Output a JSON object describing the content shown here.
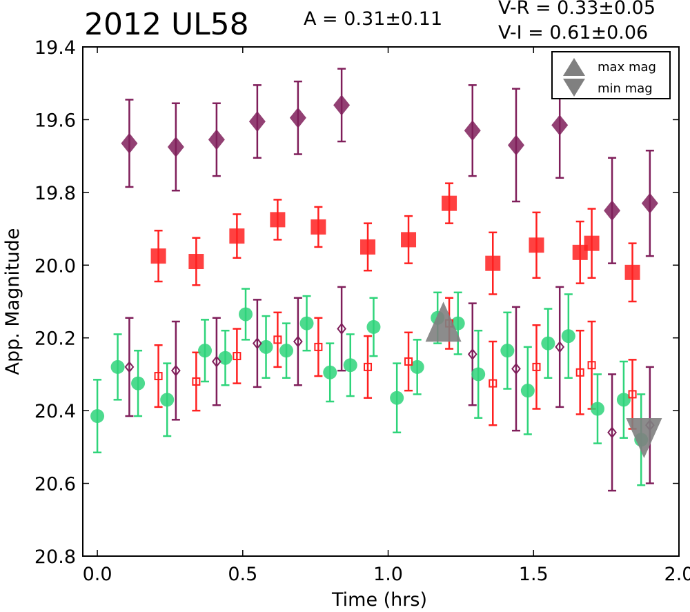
{
  "header": {
    "title": "2012 UL58",
    "amplitude": "A  = 0.31±0.11",
    "vr_color": "V-R = 0.33±0.05",
    "vi_color": "V-I  = 0.61±0.06"
  },
  "chart_data": {
    "type": "scatter",
    "xlabel": "Time (hrs)",
    "ylabel": "App. Magnitude",
    "xlim": [
      -0.05,
      2.0
    ],
    "ylim": [
      19.4,
      20.8
    ],
    "y_inverted": true,
    "x_ticks": [
      "0.0",
      "0.5",
      "1.0",
      "1.5",
      "2.0"
    ],
    "y_ticks": [
      "19.4",
      "19.6",
      "19.8",
      "20.0",
      "20.2",
      "20.4",
      "20.6",
      "20.8"
    ],
    "legend": {
      "position": "top-right",
      "entries": [
        {
          "label": "max mag",
          "marker": "triangle-up",
          "color": "#808080"
        },
        {
          "label": "min mag",
          "marker": "triangle-down",
          "color": "#808080"
        }
      ]
    },
    "series": [
      {
        "key": "i_filled",
        "marker": "diamond",
        "filled": true,
        "color": "#7f1e5a",
        "points": [
          {
            "x": 0.11,
            "y": 19.665,
            "err": 0.12
          },
          {
            "x": 0.27,
            "y": 19.675,
            "err": 0.12
          },
          {
            "x": 0.41,
            "y": 19.655,
            "err": 0.1
          },
          {
            "x": 0.55,
            "y": 19.605,
            "err": 0.1
          },
          {
            "x": 0.69,
            "y": 19.595,
            "err": 0.1
          },
          {
            "x": 0.84,
            "y": 19.56,
            "err": 0.1
          },
          {
            "x": 1.29,
            "y": 19.63,
            "err": 0.125
          },
          {
            "x": 1.44,
            "y": 19.67,
            "err": 0.155
          },
          {
            "x": 1.59,
            "y": 19.615,
            "err": 0.145
          },
          {
            "x": 1.77,
            "y": 19.85,
            "err": 0.145
          },
          {
            "x": 1.9,
            "y": 19.83,
            "err": 0.145
          }
        ]
      },
      {
        "key": "r_filled",
        "marker": "square",
        "filled": true,
        "color": "#ff2020",
        "points": [
          {
            "x": 0.21,
            "y": 19.975,
            "err": 0.07
          },
          {
            "x": 0.34,
            "y": 19.99,
            "err": 0.065
          },
          {
            "x": 0.48,
            "y": 19.92,
            "err": 0.06
          },
          {
            "x": 0.62,
            "y": 19.875,
            "err": 0.055
          },
          {
            "x": 0.76,
            "y": 19.895,
            "err": 0.055
          },
          {
            "x": 0.93,
            "y": 19.95,
            "err": 0.065
          },
          {
            "x": 1.07,
            "y": 19.93,
            "err": 0.065
          },
          {
            "x": 1.21,
            "y": 19.83,
            "err": 0.055
          },
          {
            "x": 1.36,
            "y": 19.995,
            "err": 0.085
          },
          {
            "x": 1.51,
            "y": 19.945,
            "err": 0.09
          },
          {
            "x": 1.66,
            "y": 19.965,
            "err": 0.085
          },
          {
            "x": 1.7,
            "y": 19.94,
            "err": 0.095
          },
          {
            "x": 1.84,
            "y": 20.02,
            "err": 0.08
          }
        ]
      },
      {
        "key": "v_filled",
        "marker": "circle",
        "filled": true,
        "color": "#2ed47a",
        "points": [
          {
            "x": 0.0,
            "y": 20.415,
            "err": 0.1
          },
          {
            "x": 0.07,
            "y": 20.28,
            "err": 0.09
          },
          {
            "x": 0.14,
            "y": 20.325,
            "err": 0.09
          },
          {
            "x": 0.24,
            "y": 20.37,
            "err": 0.1
          },
          {
            "x": 0.37,
            "y": 20.235,
            "err": 0.085
          },
          {
            "x": 0.44,
            "y": 20.255,
            "err": 0.075
          },
          {
            "x": 0.51,
            "y": 20.135,
            "err": 0.07
          },
          {
            "x": 0.58,
            "y": 20.225,
            "err": 0.085
          },
          {
            "x": 0.65,
            "y": 20.235,
            "err": 0.075
          },
          {
            "x": 0.72,
            "y": 20.16,
            "err": 0.075
          },
          {
            "x": 0.8,
            "y": 20.295,
            "err": 0.08
          },
          {
            "x": 0.87,
            "y": 20.275,
            "err": 0.085
          },
          {
            "x": 0.95,
            "y": 20.17,
            "err": 0.08
          },
          {
            "x": 1.03,
            "y": 20.365,
            "err": 0.095
          },
          {
            "x": 1.1,
            "y": 20.28,
            "err": 0.075
          },
          {
            "x": 1.17,
            "y": 20.145,
            "err": 0.07
          },
          {
            "x": 1.24,
            "y": 20.16,
            "err": 0.085
          },
          {
            "x": 1.31,
            "y": 20.3,
            "err": 0.12
          },
          {
            "x": 1.41,
            "y": 20.235,
            "err": 0.105
          },
          {
            "x": 1.48,
            "y": 20.345,
            "err": 0.12
          },
          {
            "x": 1.55,
            "y": 20.215,
            "err": 0.095
          },
          {
            "x": 1.62,
            "y": 20.195,
            "err": 0.115
          },
          {
            "x": 1.72,
            "y": 20.395,
            "err": 0.095
          },
          {
            "x": 1.81,
            "y": 20.37,
            "err": 0.105
          },
          {
            "x": 1.87,
            "y": 20.48,
            "err": 0.125
          }
        ]
      },
      {
        "key": "r_open",
        "marker": "square",
        "filled": false,
        "color": "#ff2020",
        "points": [
          {
            "x": 0.21,
            "y": 20.305,
            "err": 0.085
          },
          {
            "x": 0.34,
            "y": 20.32,
            "err": 0.08
          },
          {
            "x": 0.48,
            "y": 20.25,
            "err": 0.075
          },
          {
            "x": 0.62,
            "y": 20.205,
            "err": 0.075
          },
          {
            "x": 0.76,
            "y": 20.225,
            "err": 0.08
          },
          {
            "x": 0.93,
            "y": 20.28,
            "err": 0.085
          },
          {
            "x": 1.07,
            "y": 20.265,
            "err": 0.08
          },
          {
            "x": 1.21,
            "y": 20.16,
            "err": 0.07
          },
          {
            "x": 1.36,
            "y": 20.325,
            "err": 0.115
          },
          {
            "x": 1.51,
            "y": 20.28,
            "err": 0.115
          },
          {
            "x": 1.66,
            "y": 20.295,
            "err": 0.115
          },
          {
            "x": 1.7,
            "y": 20.275,
            "err": 0.12
          },
          {
            "x": 1.84,
            "y": 20.355,
            "err": 0.095
          }
        ]
      },
      {
        "key": "i_open",
        "marker": "diamond",
        "filled": false,
        "color": "#7f1e5a",
        "points": [
          {
            "x": 0.11,
            "y": 20.28,
            "err": 0.135
          },
          {
            "x": 0.27,
            "y": 20.29,
            "err": 0.135
          },
          {
            "x": 0.41,
            "y": 20.265,
            "err": 0.12
          },
          {
            "x": 0.55,
            "y": 20.215,
            "err": 0.12
          },
          {
            "x": 0.69,
            "y": 20.21,
            "err": 0.12
          },
          {
            "x": 0.84,
            "y": 20.175,
            "err": 0.115
          },
          {
            "x": 1.29,
            "y": 20.245,
            "err": 0.14
          },
          {
            "x": 1.44,
            "y": 20.285,
            "err": 0.17
          },
          {
            "x": 1.59,
            "y": 20.225,
            "err": 0.165
          },
          {
            "x": 1.77,
            "y": 20.46,
            "err": 0.16
          },
          {
            "x": 1.9,
            "y": 20.44,
            "err": 0.16
          }
        ]
      }
    ],
    "extrema": [
      {
        "label": "max mag",
        "x": 1.19,
        "y": 20.165,
        "marker": "triangle-up",
        "color": "#808080"
      },
      {
        "label": "min mag",
        "x": 1.88,
        "y": 20.47,
        "marker": "triangle-down",
        "color": "#808080"
      }
    ]
  }
}
